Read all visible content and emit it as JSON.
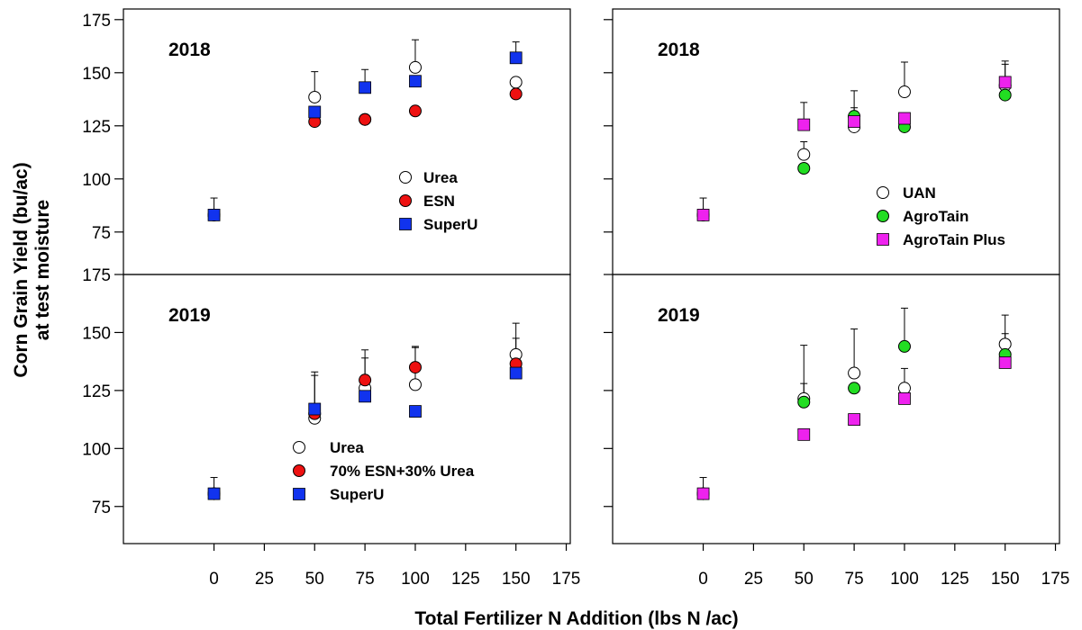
{
  "figure": {
    "ylabel_line1": "Corn Grain Yield (bu/ac)",
    "ylabel_line2": "at test moisture",
    "xlabel": "Total Fertilizer N Addition (lbs N /ac)"
  },
  "chart_data": [
    {
      "type": "scatter",
      "year_label": "2018",
      "xlim": [
        -45,
        177
      ],
      "ylim": [
        55,
        180
      ],
      "xticks": [
        0,
        25,
        50,
        75,
        100,
        125,
        150,
        175
      ],
      "yticks": [
        75,
        100,
        125,
        150,
        175
      ],
      "error_bars": "upper",
      "series": [
        {
          "name": "Urea",
          "marker": "circle",
          "fill": "#ffffff",
          "points": [
            {
              "x": 0,
              "y": 83,
              "err": 8
            },
            {
              "x": 50,
              "y": 138.5,
              "err": 12
            },
            {
              "x": 75,
              "y": 128,
              "err": 0
            },
            {
              "x": 100,
              "y": 152.5,
              "err": 13
            },
            {
              "x": 150,
              "y": 145.5,
              "err": 0
            }
          ]
        },
        {
          "name": "ESN",
          "marker": "circle",
          "fill": "#ee1111",
          "points": [
            {
              "x": 0,
              "y": 83,
              "err": 0
            },
            {
              "x": 50,
              "y": 127,
              "err": 0
            },
            {
              "x": 75,
              "y": 128,
              "err": 0
            },
            {
              "x": 100,
              "y": 132,
              "err": 0
            },
            {
              "x": 150,
              "y": 140,
              "err": 0
            }
          ]
        },
        {
          "name": "SuperU",
          "marker": "square",
          "fill": "#1133ee",
          "points": [
            {
              "x": 0,
              "y": 83,
              "err": 0
            },
            {
              "x": 50,
              "y": 131.5,
              "err": 0
            },
            {
              "x": 75,
              "y": 143,
              "err": 8.5
            },
            {
              "x": 100,
              "y": 146,
              "err": 0
            },
            {
              "x": 150,
              "y": 157,
              "err": 7.5
            }
          ]
        }
      ]
    },
    {
      "type": "scatter",
      "year_label": "2018",
      "xlim": [
        -45,
        177
      ],
      "ylim": [
        55,
        180
      ],
      "xticks": [
        0,
        25,
        50,
        75,
        100,
        125,
        150,
        175
      ],
      "yticks": [
        75,
        100,
        125,
        150,
        175
      ],
      "error_bars": "upper",
      "series": [
        {
          "name": "UAN",
          "marker": "circle",
          "fill": "#ffffff",
          "points": [
            {
              "x": 0,
              "y": 83,
              "err": 8
            },
            {
              "x": 50,
              "y": 111.5,
              "err": 6
            },
            {
              "x": 75,
              "y": 124.5,
              "err": 9
            },
            {
              "x": 100,
              "y": 141,
              "err": 14
            },
            {
              "x": 150,
              "y": 144,
              "err": 10
            }
          ]
        },
        {
          "name": "AgroTain",
          "marker": "circle",
          "fill": "#22dd22",
          "points": [
            {
              "x": 0,
              "y": 83,
              "err": 0
            },
            {
              "x": 50,
              "y": 105,
              "err": 0
            },
            {
              "x": 75,
              "y": 129.5,
              "err": 12
            },
            {
              "x": 100,
              "y": 124.5,
              "err": 0
            },
            {
              "x": 150,
              "y": 139.5,
              "err": 0
            }
          ]
        },
        {
          "name": "AgroTain Plus",
          "marker": "square",
          "fill": "#ee22ee",
          "points": [
            {
              "x": 0,
              "y": 83,
              "err": 0
            },
            {
              "x": 50,
              "y": 125.5,
              "err": 10.5
            },
            {
              "x": 75,
              "y": 127,
              "err": 0
            },
            {
              "x": 100,
              "y": 128.5,
              "err": 0
            },
            {
              "x": 150,
              "y": 145.5,
              "err": 10
            }
          ]
        }
      ]
    },
    {
      "type": "scatter",
      "year_label": "2019",
      "xlim": [
        -45,
        177
      ],
      "ylim": [
        59,
        175
      ],
      "xticks": [
        0,
        25,
        50,
        75,
        100,
        125,
        150,
        175
      ],
      "yticks": [
        75,
        100,
        125,
        150,
        175
      ],
      "error_bars": "upper",
      "series": [
        {
          "name": "Urea",
          "marker": "circle",
          "fill": "#ffffff",
          "points": [
            {
              "x": 0,
              "y": 80.5,
              "err": 7
            },
            {
              "x": 50,
              "y": 113,
              "err": 20
            },
            {
              "x": 75,
              "y": 126,
              "err": 13
            },
            {
              "x": 100,
              "y": 127.5,
              "err": 16
            },
            {
              "x": 150,
              "y": 140.5,
              "err": 13.5
            }
          ]
        },
        {
          "name": "70% ESN+30% Urea",
          "marker": "circle",
          "fill": "#ee1111",
          "points": [
            {
              "x": 0,
              "y": 80.5,
              "err": 0
            },
            {
              "x": 50,
              "y": 115,
              "err": 0
            },
            {
              "x": 75,
              "y": 129.5,
              "err": 13
            },
            {
              "x": 100,
              "y": 135,
              "err": 9
            },
            {
              "x": 150,
              "y": 136.5,
              "err": 11
            }
          ]
        },
        {
          "name": "SuperU",
          "marker": "square",
          "fill": "#1133ee",
          "points": [
            {
              "x": 0,
              "y": 80.5,
              "err": 0
            },
            {
              "x": 50,
              "y": 117,
              "err": 14.5
            },
            {
              "x": 75,
              "y": 122.5,
              "err": 0
            },
            {
              "x": 100,
              "y": 116,
              "err": 0
            },
            {
              "x": 150,
              "y": 132.5,
              "err": 0
            }
          ]
        }
      ]
    },
    {
      "type": "scatter",
      "year_label": "2019",
      "xlim": [
        -45,
        177
      ],
      "ylim": [
        59,
        175
      ],
      "xticks": [
        0,
        25,
        50,
        75,
        100,
        125,
        150,
        175
      ],
      "yticks": [
        75,
        100,
        125,
        150,
        175
      ],
      "error_bars": "upper",
      "series": [
        {
          "name": "UAN",
          "marker": "circle",
          "fill": "#ffffff",
          "points": [
            {
              "x": 0,
              "y": 80.5,
              "err": 7
            },
            {
              "x": 50,
              "y": 121.5,
              "err": 23
            },
            {
              "x": 75,
              "y": 132.5,
              "err": 19
            },
            {
              "x": 100,
              "y": 126,
              "err": 8.5
            },
            {
              "x": 150,
              "y": 145,
              "err": 12.5
            }
          ]
        },
        {
          "name": "AgroTain",
          "marker": "circle",
          "fill": "#22dd22",
          "points": [
            {
              "x": 0,
              "y": 80.5,
              "err": 0
            },
            {
              "x": 50,
              "y": 120,
              "err": 8
            },
            {
              "x": 75,
              "y": 126,
              "err": 0
            },
            {
              "x": 100,
              "y": 144,
              "err": 16.5
            },
            {
              "x": 150,
              "y": 140.5,
              "err": 9
            }
          ]
        },
        {
          "name": "AgroTain Plus",
          "marker": "square",
          "fill": "#ee22ee",
          "points": [
            {
              "x": 0,
              "y": 80.5,
              "err": 0
            },
            {
              "x": 50,
              "y": 106,
              "err": 0
            },
            {
              "x": 75,
              "y": 112.5,
              "err": 0
            },
            {
              "x": 100,
              "y": 121.5,
              "err": 0
            },
            {
              "x": 150,
              "y": 137,
              "err": 0
            }
          ]
        }
      ]
    }
  ]
}
